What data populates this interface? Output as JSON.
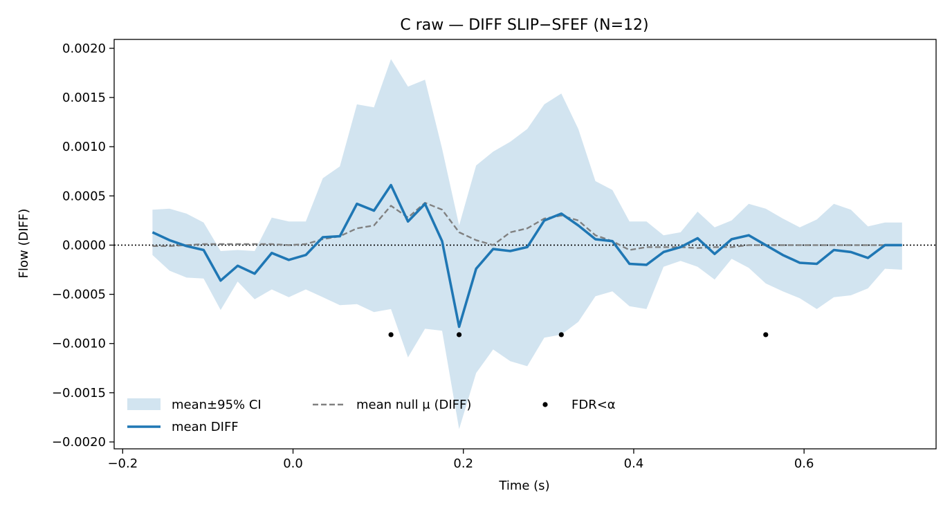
{
  "chart_data": {
    "type": "line",
    "title": "C raw — DIFF SLIP−SFEF (N=12)",
    "xlabel": "Time (s)",
    "ylabel": "Flow (DIFF)",
    "xlim": [
      -0.21,
      0.755
    ],
    "ylim": [
      -0.00207,
      0.00209
    ],
    "x_ticks": [
      -0.2,
      0.0,
      0.2,
      0.4,
      0.6
    ],
    "x_tick_labels": [
      "−0.2",
      "0.0",
      "0.2",
      "0.4",
      "0.6"
    ],
    "y_ticks": [
      -0.002,
      -0.0015,
      -0.001,
      -0.0005,
      0.0,
      0.0005,
      0.001,
      0.0015,
      0.002
    ],
    "y_tick_labels": [
      "−0.0020",
      "−0.0015",
      "−0.0010",
      "−0.0005",
      "0.0000",
      "0.0005",
      "0.0010",
      "0.0015",
      "0.0020"
    ],
    "grid": false,
    "zero_line": 0.0,
    "legend_position": "lower-left",
    "x": [
      -0.165,
      -0.145,
      -0.125,
      -0.105,
      -0.085,
      -0.065,
      -0.045,
      -0.025,
      -0.005,
      0.015,
      0.035,
      0.055,
      0.075,
      0.095,
      0.115,
      0.135,
      0.155,
      0.175,
      0.195,
      0.215,
      0.235,
      0.255,
      0.275,
      0.295,
      0.315,
      0.335,
      0.355,
      0.375,
      0.395,
      0.415,
      0.435,
      0.455,
      0.475,
      0.495,
      0.515,
      0.535,
      0.555,
      0.575,
      0.595,
      0.615,
      0.635,
      0.655,
      0.675,
      0.695,
      0.715
    ],
    "series": [
      {
        "name": "mean DIFF",
        "color": "#1f77b4",
        "style": "solid",
        "values": [
          0.00013,
          5e-05,
          -1e-05,
          -5e-05,
          -0.00036,
          -0.00021,
          -0.00029,
          -8e-05,
          -0.00015,
          -0.0001,
          8e-05,
          9e-05,
          0.00042,
          0.00035,
          0.00061,
          0.00024,
          0.00042,
          4e-05,
          -0.00083,
          -0.00024,
          -4e-05,
          -6e-05,
          -2e-05,
          0.00025,
          0.00032,
          0.0002,
          6e-05,
          4e-05,
          -0.00019,
          -0.0002,
          -7e-05,
          -2e-05,
          7e-05,
          -9e-05,
          6e-05,
          0.0001,
          0.0,
          -0.0001,
          -0.00018,
          -0.00019,
          -5e-05,
          -7e-05,
          -0.00013,
          0.0,
          0.0
        ]
      },
      {
        "name": "mean null μ (DIFF)",
        "color": "#808080",
        "style": "dashed",
        "values": [
          -1e-05,
          -1e-05,
          0.0,
          1e-05,
          1e-05,
          1e-05,
          1e-05,
          1e-05,
          0.0,
          1e-05,
          6e-05,
          9e-05,
          0.00017,
          0.0002,
          0.0004,
          0.00028,
          0.00043,
          0.00036,
          0.00013,
          5e-05,
          0.0,
          0.00013,
          0.00017,
          0.00027,
          0.0003,
          0.00025,
          0.0001,
          4e-05,
          -5e-05,
          -2e-05,
          -2e-05,
          -2e-05,
          -3e-05,
          -2e-05,
          -2e-05,
          0.0,
          0.0,
          0.0,
          0.0,
          0.0,
          0.0,
          0.0,
          0.0,
          0.0,
          0.0
        ]
      }
    ],
    "ci_band": {
      "name": "mean±95% CI",
      "color": "#1f77b4",
      "opacity": 0.2,
      "upper": [
        0.00036,
        0.00037,
        0.00032,
        0.00023,
        -6e-05,
        -5e-05,
        -6e-05,
        0.00028,
        0.00024,
        0.00024,
        0.00068,
        0.0008,
        0.00143,
        0.0014,
        0.00189,
        0.00161,
        0.00168,
        0.00098,
        0.0002,
        0.00081,
        0.00095,
        0.00105,
        0.00118,
        0.00143,
        0.00154,
        0.00118,
        0.00065,
        0.00056,
        0.00024,
        0.00024,
        0.0001,
        0.00013,
        0.00034,
        0.00018,
        0.00025,
        0.00042,
        0.00037,
        0.00027,
        0.00018,
        0.00026,
        0.00042,
        0.00036,
        0.00019,
        0.00023,
        0.00023
      ],
      "lower": [
        -0.0001,
        -0.00026,
        -0.00033,
        -0.00034,
        -0.00066,
        -0.00037,
        -0.00055,
        -0.00045,
        -0.00053,
        -0.00045,
        -0.00053,
        -0.00061,
        -0.0006,
        -0.00068,
        -0.00065,
        -0.00114,
        -0.00085,
        -0.00087,
        -0.00187,
        -0.0013,
        -0.00106,
        -0.00118,
        -0.00123,
        -0.00094,
        -0.00091,
        -0.00078,
        -0.00052,
        -0.00047,
        -0.00062,
        -0.00065,
        -0.00022,
        -0.00016,
        -0.00022,
        -0.00035,
        -0.00014,
        -0.00023,
        -0.00039,
        -0.00047,
        -0.00054,
        -0.00065,
        -0.00053,
        -0.00051,
        -0.00044,
        -0.00024,
        -0.00025
      ]
    },
    "fdr_points": {
      "name": "FDR<α",
      "color": "#000000",
      "x": [
        0.115,
        0.195,
        0.315,
        0.555
      ],
      "y": [
        -0.00091,
        -0.00091,
        -0.00091,
        -0.00091
      ]
    }
  }
}
